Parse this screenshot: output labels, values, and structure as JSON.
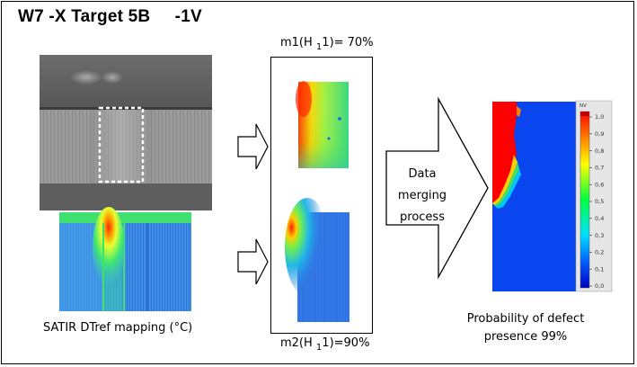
{
  "title": "W7 -X Target 5B     -1V",
  "top_label": {
    "prefix": "m1(H ",
    "sub": "1",
    "suffix": "1)= 70%"
  },
  "bottom_label": {
    "prefix": "m2(H ",
    "sub": "1",
    "suffix": "1)=90%"
  },
  "satir_caption": "SATIR DTref mapping (°C)",
  "merge_lines": [
    "Data",
    "merging",
    "process"
  ],
  "probability_caption": [
    "Probability of defect",
    "presence 99%"
  ],
  "colorbar": {
    "header": "NV",
    "ticks": [
      "1,0",
      "0,9",
      "0,8",
      "0,7",
      "0,6",
      "0,5",
      "0,4",
      "0,3",
      "0,2",
      "0,1",
      "0,0"
    ]
  }
}
